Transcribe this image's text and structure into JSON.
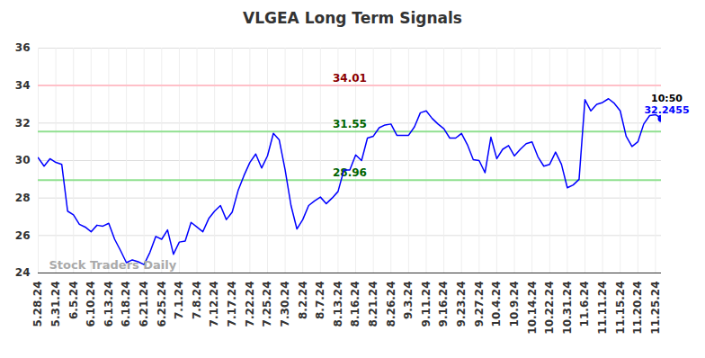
{
  "chart_data": {
    "type": "line",
    "title": "VLGEA Long Term Signals",
    "color": "#0000ff",
    "grid": true,
    "categories": [
      "5.28.24",
      null,
      null,
      "5.31.24",
      null,
      null,
      "6.5.24",
      null,
      null,
      "6.10.24",
      null,
      null,
      "6.13.24",
      null,
      null,
      "6.18.24",
      null,
      null,
      "6.21.24",
      null,
      null,
      "6.25.24",
      null,
      null,
      "7.1.24",
      null,
      null,
      "7.8.24",
      null,
      null,
      "7.12.24",
      null,
      null,
      "7.17.24",
      null,
      null,
      "7.22.24",
      null,
      null,
      "7.25.24",
      null,
      null,
      "7.30.24",
      null,
      null,
      "8.2.24",
      null,
      null,
      "8.7.24",
      null,
      null,
      "8.13.24",
      null,
      null,
      "8.16.24",
      null,
      null,
      "8.21.24",
      null,
      null,
      "8.26.24",
      null,
      null,
      "9.3.24",
      null,
      null,
      "9.11.24",
      null,
      null,
      "9.16.24",
      null,
      null,
      "9.23.24",
      null,
      null,
      "9.27.24",
      null,
      null,
      "10.4.24",
      null,
      null,
      "10.9.24",
      null,
      null,
      "10.14.24",
      null,
      null,
      "10.22.24",
      null,
      null,
      "10.31.24",
      null,
      null,
      "11.6.24",
      null,
      null,
      "11.11.24",
      null,
      null,
      "11.15.24",
      null,
      null,
      "11.20.24",
      null,
      null,
      "11.25.24",
      null
    ],
    "values": [
      30.15,
      29.7,
      30.1,
      29.9,
      29.8,
      27.3,
      27.1,
      26.6,
      26.45,
      26.2,
      26.55,
      26.5,
      26.65,
      25.8,
      25.2,
      24.55,
      24.7,
      24.6,
      24.45,
      25.1,
      25.95,
      25.8,
      26.3,
      25.0,
      25.65,
      25.7,
      26.7,
      26.45,
      26.2,
      26.9,
      27.3,
      27.6,
      26.85,
      27.25,
      28.4,
      29.2,
      29.9,
      30.35,
      29.6,
      30.25,
      31.45,
      31.1,
      29.5,
      27.6,
      26.35,
      26.85,
      27.6,
      27.85,
      28.05,
      27.7,
      28.0,
      28.35,
      29.5,
      29.5,
      30.3,
      30.0,
      31.2,
      31.3,
      31.75,
      31.9,
      31.95,
      31.35,
      31.35,
      31.35,
      31.8,
      32.55,
      32.65,
      32.25,
      31.95,
      31.7,
      31.2,
      31.2,
      31.45,
      30.85,
      30.05,
      30.0,
      29.35,
      31.25,
      30.1,
      30.6,
      30.8,
      30.25,
      30.6,
      30.9,
      31.0,
      30.2,
      29.7,
      29.8,
      30.45,
      29.8,
      28.55,
      28.7,
      29.0,
      33.25,
      32.65,
      33.0,
      33.1,
      33.3,
      33.05,
      32.65,
      31.3,
      30.75,
      31.0,
      31.95,
      32.4,
      32.45,
      32.2455
    ],
    "ylim": [
      24,
      36
    ],
    "yticks": [
      24,
      26,
      28,
      30,
      32,
      34,
      36
    ],
    "levels": [
      {
        "value": 34.01,
        "color": "#ffc0c8",
        "label_color": "#8b0000"
      },
      {
        "value": 31.55,
        "color": "#90e090",
        "label_color": "#006400"
      },
      {
        "value": 28.96,
        "color": "#90e090",
        "label_color": "#006400"
      }
    ],
    "last_label": "10:50",
    "watermark": "Stock Traders Daily"
  }
}
